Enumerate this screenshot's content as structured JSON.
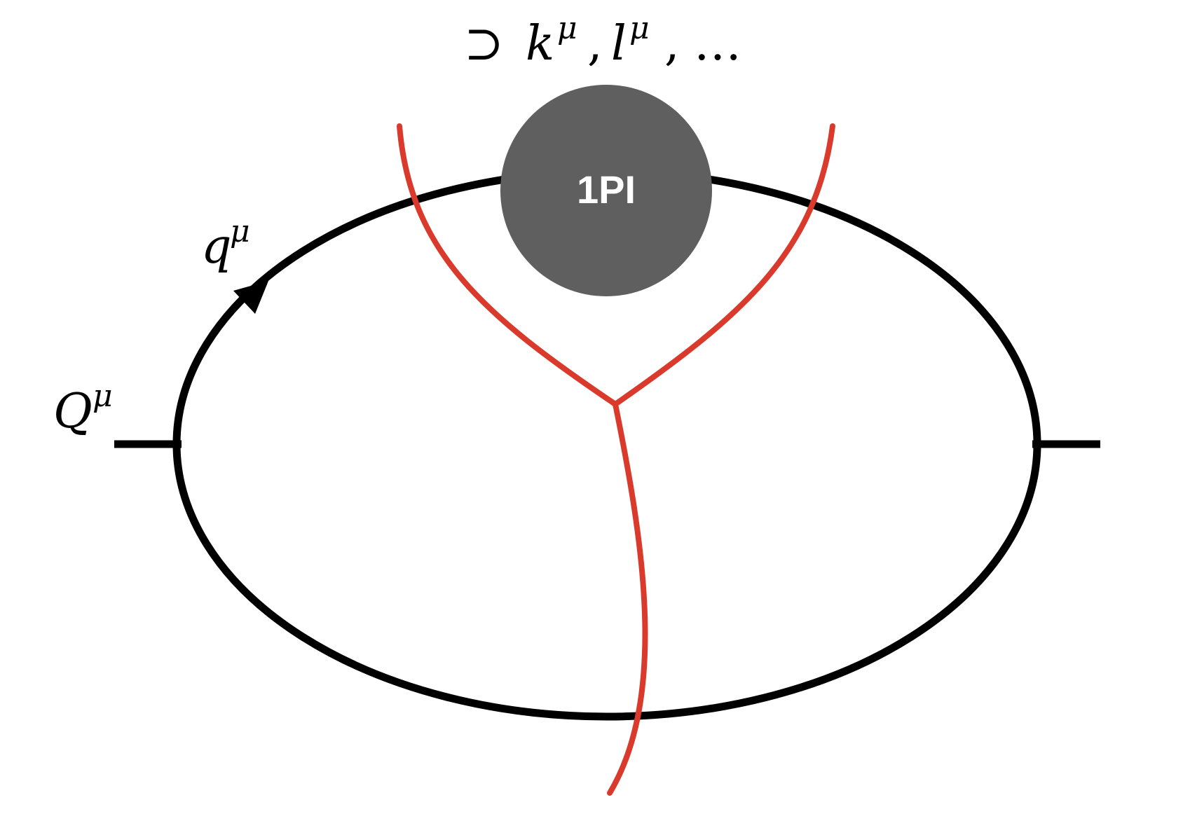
{
  "labels": {
    "top_set": {
      "symbol": "⊃",
      "k": "k",
      "sup1": "μ",
      "sep1": ",",
      "l": "l",
      "sup2": "μ",
      "sep2": ",",
      "dots": "…"
    },
    "q": {
      "base": "q",
      "sup": "μ"
    },
    "Q": {
      "base": "Q",
      "sup": "μ"
    },
    "blob": "1PI"
  },
  "colors": {
    "propagator": "#000000",
    "cut": "#d93a2b",
    "blob": "#5f5f5f",
    "blob_text": "#ffffff",
    "background": "#ffffff"
  }
}
